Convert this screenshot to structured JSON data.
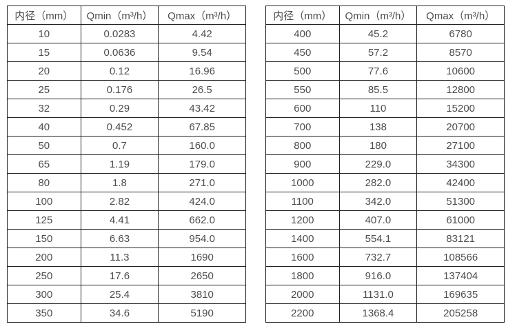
{
  "colors": {
    "background": "#ffffff",
    "border": "#222222",
    "text": "#4d4d4d"
  },
  "tables": [
    {
      "headers": [
        "内径（mm）",
        "Qmin（m³/h）",
        "Qmax（m³/h）"
      ],
      "rows": [
        [
          "10",
          "0.0283",
          "4.42"
        ],
        [
          "15",
          "0.0636",
          "9.54"
        ],
        [
          "20",
          "0.12",
          "16.96"
        ],
        [
          "25",
          "0.176",
          "26.5"
        ],
        [
          "32",
          "0.29",
          "43.42"
        ],
        [
          "40",
          "0.452",
          "67.85"
        ],
        [
          "50",
          "0.7",
          "160.0"
        ],
        [
          "65",
          "1.19",
          "179.0"
        ],
        [
          "80",
          "1.8",
          "271.0"
        ],
        [
          "100",
          "2.82",
          "424.0"
        ],
        [
          "125",
          "4.41",
          "662.0"
        ],
        [
          "150",
          "6.63",
          "954.0"
        ],
        [
          "200",
          "11.3",
          "1690"
        ],
        [
          "250",
          "17.6",
          "2650"
        ],
        [
          "300",
          "25.4",
          "3810"
        ],
        [
          "350",
          "34.6",
          "5190"
        ]
      ]
    },
    {
      "headers": [
        "内径（mm）",
        "Qmin（m³/h）",
        "Qmax（m³/h）"
      ],
      "rows": [
        [
          "400",
          "45.2",
          "6780"
        ],
        [
          "450",
          "57.2",
          "8570"
        ],
        [
          "500",
          "77.6",
          "10600"
        ],
        [
          "550",
          "85.5",
          "12800"
        ],
        [
          "600",
          "110",
          "15200"
        ],
        [
          "700",
          "138",
          "20700"
        ],
        [
          "800",
          "180",
          "27100"
        ],
        [
          "900",
          "229.0",
          "34300"
        ],
        [
          "1000",
          "282.0",
          "42400"
        ],
        [
          "1100",
          "342.0",
          "51300"
        ],
        [
          "1200",
          "407.0",
          "61000"
        ],
        [
          "1400",
          "554.1",
          "83121"
        ],
        [
          "1600",
          "732.7",
          "108566"
        ],
        [
          "1800",
          "916.0",
          "137404"
        ],
        [
          "2000",
          "1131.0",
          "169635"
        ],
        [
          "2200",
          "1368.4",
          "205258"
        ]
      ]
    }
  ]
}
